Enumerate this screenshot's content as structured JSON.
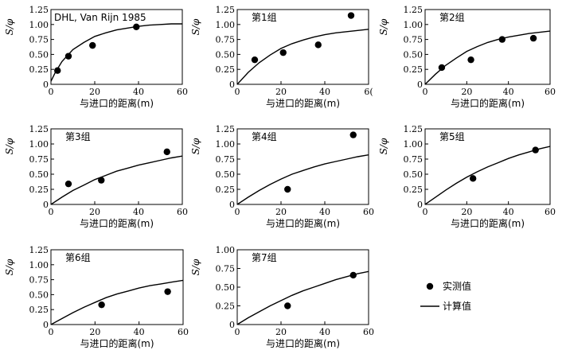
{
  "legend": {
    "measured_label": "实测值",
    "calculated_label": "计算值"
  },
  "chart_data": [
    {
      "type": "scatter",
      "title": "DHL, Van Rijn 1985",
      "xlabel": "与进口的距离(m)",
      "ylabel": "S/φ",
      "xlim": [
        0,
        60
      ],
      "ylim": [
        0,
        1.25
      ],
      "xticks": [
        "0",
        "20",
        "40",
        "60"
      ],
      "yticks": [
        "0",
        "0.25",
        "0.50",
        "0.75",
        "1.00",
        "1.25"
      ],
      "measured": {
        "x": [
          3,
          8,
          19,
          39
        ],
        "y": [
          0.23,
          0.47,
          0.65,
          0.96
        ]
      },
      "calculated": {
        "x": [
          0,
          2,
          5,
          10,
          15,
          20,
          25,
          30,
          35,
          40,
          45,
          50,
          55,
          60
        ],
        "y": [
          0.05,
          0.2,
          0.38,
          0.58,
          0.7,
          0.8,
          0.86,
          0.91,
          0.94,
          0.97,
          0.99,
          1.0,
          1.01,
          1.01
        ]
      }
    },
    {
      "type": "scatter",
      "title": "第1组",
      "xlabel": "与进口的距离(m)",
      "ylabel": "S/φ",
      "xlim": [
        0,
        60
      ],
      "ylim": [
        0,
        1.25
      ],
      "xticks": [
        "0",
        "20",
        "40",
        "6("
      ],
      "yticks": [
        "0",
        "0.25",
        "0.50",
        "0.75",
        "1.00",
        "1.25"
      ],
      "measured": {
        "x": [
          8,
          21,
          37,
          52
        ],
        "y": [
          0.41,
          0.53,
          0.66,
          1.15
        ]
      },
      "calculated": {
        "x": [
          0,
          5,
          10,
          15,
          20,
          25,
          30,
          35,
          40,
          45,
          50,
          55,
          60
        ],
        "y": [
          0.0,
          0.2,
          0.36,
          0.49,
          0.6,
          0.68,
          0.74,
          0.79,
          0.83,
          0.86,
          0.88,
          0.9,
          0.92
        ]
      }
    },
    {
      "type": "scatter",
      "title": "第2组",
      "xlabel": "与进口的距离(m)",
      "ylabel": "S/φ",
      "xlim": [
        0,
        60
      ],
      "ylim": [
        0,
        1.25
      ],
      "xticks": [
        "0",
        "20",
        "40",
        "60"
      ],
      "yticks": [
        "0",
        "0.25",
        "0.50",
        "0.75",
        "1.00",
        "1.25"
      ],
      "measured": {
        "x": [
          8,
          22,
          37,
          52
        ],
        "y": [
          0.28,
          0.41,
          0.75,
          0.77
        ]
      },
      "calculated": {
        "x": [
          0,
          5,
          10,
          15,
          20,
          25,
          30,
          35,
          40,
          45,
          50,
          55,
          60
        ],
        "y": [
          0.0,
          0.17,
          0.32,
          0.44,
          0.55,
          0.63,
          0.7,
          0.75,
          0.79,
          0.82,
          0.85,
          0.87,
          0.89
        ]
      }
    },
    {
      "type": "scatter",
      "title": "第3组",
      "xlabel": "与进口的距离(m)",
      "ylabel": "S/φ",
      "xlim": [
        0,
        60
      ],
      "ylim": [
        0,
        1.25
      ],
      "xticks": [
        "0",
        "20",
        "40",
        "60"
      ],
      "yticks": [
        "0",
        "0.25",
        "0.50",
        "0.75",
        "1.00",
        "1.25"
      ],
      "measured": {
        "x": [
          8,
          23,
          53
        ],
        "y": [
          0.34,
          0.4,
          0.87
        ]
      },
      "calculated": {
        "x": [
          0,
          5,
          10,
          15,
          20,
          25,
          30,
          35,
          40,
          45,
          50,
          55,
          60
        ],
        "y": [
          0.0,
          0.12,
          0.23,
          0.32,
          0.41,
          0.48,
          0.55,
          0.6,
          0.65,
          0.69,
          0.73,
          0.77,
          0.8
        ]
      }
    },
    {
      "type": "scatter",
      "title": "第4组",
      "xlabel": "与进口的距离(m)",
      "ylabel": "S/φ",
      "xlim": [
        0,
        60
      ],
      "ylim": [
        0,
        1.25
      ],
      "xticks": [
        "0",
        "20",
        "40",
        "60"
      ],
      "yticks": [
        "0",
        "0.25",
        "0.50",
        "0.75",
        "1.00",
        "1.25"
      ],
      "measured": {
        "x": [
          23,
          53
        ],
        "y": [
          0.25,
          1.15
        ]
      },
      "calculated": {
        "x": [
          0,
          5,
          10,
          15,
          20,
          25,
          30,
          35,
          40,
          45,
          50,
          55,
          60
        ],
        "y": [
          0.0,
          0.12,
          0.23,
          0.33,
          0.42,
          0.5,
          0.56,
          0.62,
          0.67,
          0.71,
          0.75,
          0.79,
          0.82
        ]
      }
    },
    {
      "type": "scatter",
      "title": "第5组",
      "xlabel": "与进口的距离(m)",
      "ylabel": "S/φ",
      "xlim": [
        0,
        60
      ],
      "ylim": [
        0,
        1.25
      ],
      "xticks": [
        "0",
        "20",
        "40",
        "60"
      ],
      "yticks": [
        "0",
        "0.25",
        "0.50",
        "0.75",
        "1.00",
        "1.25"
      ],
      "measured": {
        "x": [
          23,
          53
        ],
        "y": [
          0.43,
          0.9
        ]
      },
      "calculated": {
        "x": [
          0,
          5,
          10,
          15,
          20,
          25,
          30,
          35,
          40,
          45,
          50,
          55,
          60
        ],
        "y": [
          0.0,
          0.12,
          0.24,
          0.35,
          0.45,
          0.54,
          0.62,
          0.69,
          0.76,
          0.82,
          0.87,
          0.92,
          0.96
        ]
      }
    },
    {
      "type": "scatter",
      "title": "第6组",
      "xlabel": "与进口的距离(m)",
      "ylabel": "S/φ",
      "xlim": [
        0,
        60
      ],
      "ylim": [
        0,
        1.25
      ],
      "xticks": [
        "0",
        "20",
        "40",
        "60"
      ],
      "yticks": [
        "0",
        "0.25",
        "0.50",
        "0.75",
        "1.00",
        "1.25"
      ],
      "measured": {
        "x": [
          23,
          53
        ],
        "y": [
          0.33,
          0.55
        ]
      },
      "calculated": {
        "x": [
          0,
          5,
          10,
          15,
          20,
          25,
          30,
          35,
          40,
          45,
          50,
          55,
          60
        ],
        "y": [
          0.0,
          0.1,
          0.2,
          0.29,
          0.37,
          0.45,
          0.51,
          0.56,
          0.61,
          0.65,
          0.68,
          0.71,
          0.74
        ]
      }
    },
    {
      "type": "scatter",
      "title": "第7组",
      "xlabel": "与进口的距离(m)",
      "ylabel": "S/φ",
      "xlim": [
        0,
        60
      ],
      "ylim": [
        0,
        1.0
      ],
      "xticks": [
        "0",
        "20",
        "40",
        "60"
      ],
      "yticks": [
        "0",
        "0.25",
        "0.50",
        "0.75",
        "1.00"
      ],
      "measured": {
        "x": [
          23,
          53
        ],
        "y": [
          0.25,
          0.66
        ]
      },
      "calculated": {
        "x": [
          0,
          5,
          10,
          15,
          20,
          25,
          30,
          35,
          40,
          45,
          50,
          55,
          60
        ],
        "y": [
          0.0,
          0.09,
          0.17,
          0.25,
          0.32,
          0.39,
          0.45,
          0.5,
          0.55,
          0.6,
          0.64,
          0.68,
          0.71
        ]
      }
    }
  ]
}
